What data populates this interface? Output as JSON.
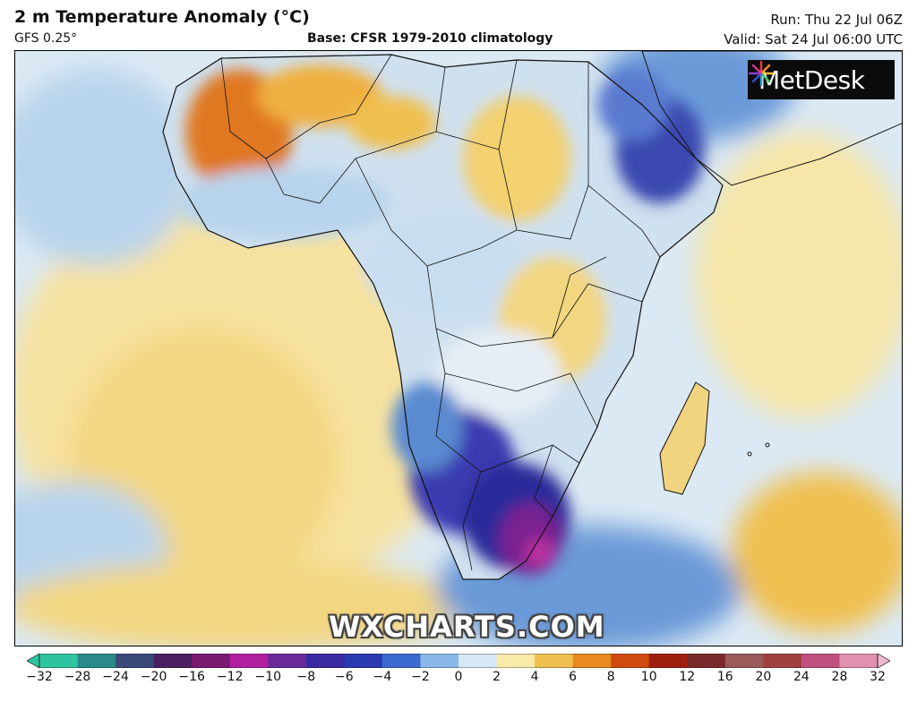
{
  "header": {
    "title": "2 m Temperature Anomaly (°C)",
    "model": "GFS 0.25°",
    "base": "Base: CFSR 1979-2010 climatology",
    "run": "Run: Thu 22 Jul 06Z",
    "valid": "Valid: Sat 24 Jul 06:00 UTC"
  },
  "brand": {
    "name": "MetDesk",
    "icon": "starburst-logo-icon"
  },
  "watermark": "WXCHARTS.COM",
  "colorbar": {
    "ticks": [
      "−32",
      "−28",
      "−24",
      "−20",
      "−16",
      "−12",
      "−10",
      "−8",
      "−6",
      "−4",
      "−2",
      "0",
      "2",
      "4",
      "6",
      "8",
      "10",
      "12",
      "16",
      "20",
      "24",
      "28",
      "32"
    ],
    "colors": [
      "#2ec4a0",
      "#2a8a8a",
      "#3a4a7a",
      "#4a2060",
      "#7a1a70",
      "#b020a0",
      "#6a2a9a",
      "#3a2aa0",
      "#2a3ab0",
      "#3a6ad0",
      "#8ab8e8",
      "#d8e8f4",
      "#f8eaa8",
      "#f0c050",
      "#e88a20",
      "#d04a10",
      "#a02010",
      "#7a2a2a",
      "#9a5a5a",
      "#a04040",
      "#c05080",
      "#e090b0"
    ],
    "end_left": "#2ec4a0",
    "end_right": "#f0b8d0"
  },
  "map_colors": {
    "ocean_cool": "#dbe9f4",
    "light_blue": "#b8d4ec",
    "mid_blue": "#5a8ad0",
    "deep_blue": "#2a2aa0",
    "purple": "#5a1a8a",
    "magenta": "#b02090",
    "pale_yellow": "#f6e6a8",
    "yellow": "#f0cc60",
    "orange": "#e88a30",
    "dark_orange": "#c85a10",
    "border": "#111111"
  }
}
